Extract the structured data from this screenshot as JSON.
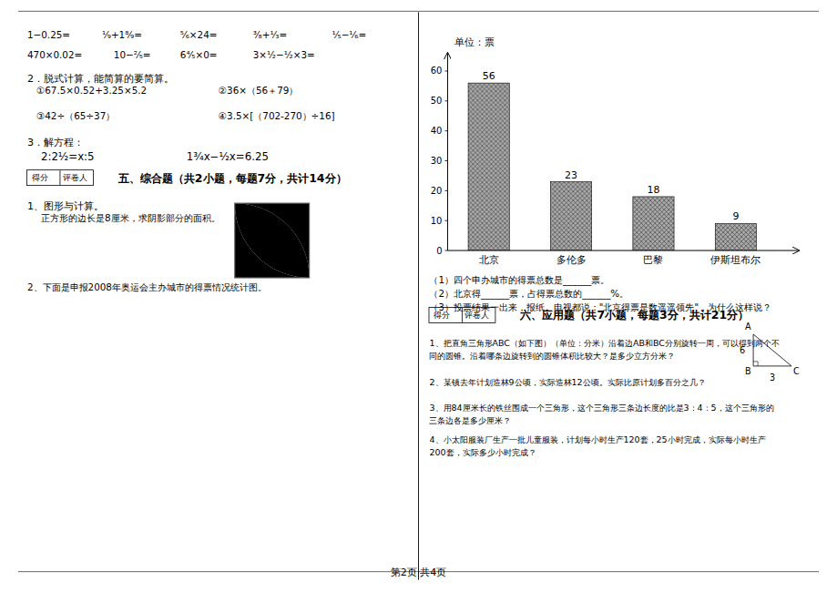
{
  "chart_data": {
    "type": "bar",
    "ylabel": "单位：票",
    "categories": [
      "北京",
      "多伦多",
      "巴黎",
      "伊斯坦布尔"
    ],
    "values": [
      56,
      23,
      18,
      9
    ],
    "color": "#aaaaaa",
    "ylim": [
      0,
      66
    ],
    "yticks": [
      0,
      10,
      20,
      30,
      40,
      50,
      60
    ],
    "data_labels": true,
    "grid": false,
    "annotations": [
      "1−0.25=",
      "¹⁄₉+1⁸⁄₉=",
      "⁵⁄₆×24=",
      "³⁄₈+¹⁄₃=",
      "¹⁄₅−¹⁄₆=",
      "470×0.02=",
      "10−²⁄₅=",
      "6⁴⁄₅×0=",
      "3×¹⁄₂−¹⁄₂×3=",
      "2．脱式计算，能简算的要简算。",
      "①67.5×0.52+3.25×5.2",
      "②36×（56＋79）",
      "③42÷（65÷37）",
      "④3.5×[（702-270）÷16]",
      "3．解方程：",
      "2:2¹⁄₂=x:5",
      "1³⁄₄x−¹⁄₂x=6.25",
      "得分",
      "评卷人",
      "五、综合题（共2小题，每题7分，共计14分）",
      "1、图形与计算。",
      "正方形的边长是8厘米，求阴影部分的面积。",
      "2、下面是申报2008年奥运会主办城市的得票情况统计图。",
      "（1）四个申办城市的得票总数是______票。",
      "（2）北京得______票，占得票总数的______%。",
      "（3）投票结果一出来，报纸、电视都说：\"北京得票是数遥遥领先\"，为什么这样说？",
      "得分",
      "评卷人",
      "六、应用题（共7小题，每题3分，共计21分）",
      "1、把直角三角形ABC（如下图）（单位：分米）沿着边AB和BC分别旋转一周，可以得到两个不",
      "同的圆锥。沿着哪条边旋转到的圆锥体积比较大？是多少立方分米？",
      "2、某镇去年计划造林9公顷，实际造林12公顷。实际比原计划多百分之几？",
      "3、用84厘米长的铁丝围成一个三角形，这个三角形三条边长度的比是3：4：5，这个三角形的",
      "三条边各是多少厘米？",
      "4、小太阳服装厂生产一批儿童服装，计划每小时生产120套，25小时完成，实际每小时生产",
      "200套，实际多少小时完成？",
      "A",
      "B",
      "C",
      "6",
      "3",
      "第2页 共4页"
    ]
  }
}
